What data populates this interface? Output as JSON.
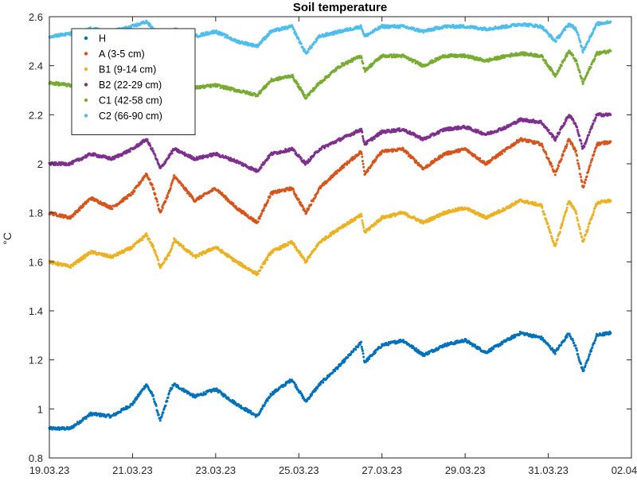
{
  "chart_data": {
    "type": "scatter",
    "title": "Soil temperature",
    "xlabel": "",
    "ylabel": "°C",
    "x_range": [
      "19.03.23",
      "02.04.23"
    ],
    "ylim": [
      0.8,
      2.6
    ],
    "x_ticks": [
      "19.03.23",
      "21.03.23",
      "23.03.23",
      "25.03.23",
      "27.03.23",
      "29.03.23",
      "31.03.23",
      "02.04.23"
    ],
    "y_ticks": [
      "0.8",
      "1",
      "1.2",
      "1.4",
      "1.6",
      "1.8",
      "2",
      "2.2",
      "2.4",
      "2.6"
    ],
    "grid": false,
    "legend_position": "top-left",
    "series": [
      {
        "name": "H",
        "color": "#0072BD",
        "x": [
          "19.03.23",
          "19.03.23 12:00",
          "20.03.23",
          "20.03.23 12:00",
          "21.03.23",
          "21.03.23 08:00",
          "21.03.23 12:00",
          "21.03.23 16:00",
          "21.03.23 22:00",
          "22.03.23",
          "22.03.23 12:00",
          "23.03.23",
          "23.03.23 12:00",
          "24.03.23",
          "24.03.23 08:00",
          "24.03.23 20:00",
          "25.03.23 04:00",
          "25.03.23 12:00",
          "26.03.23",
          "26.03.23 12:00",
          "26.03.23 14:00",
          "27.03.23",
          "27.03.23 12:00",
          "28.03.23",
          "28.03.23 12:00",
          "29.03.23",
          "29.03.23 12:00",
          "30.03.23",
          "30.03.23 08:00",
          "30.03.23 20:00",
          "31.03.23 04:00",
          "31.03.23 12:00",
          "31.03.23 16:00",
          "31.03.23 20:00",
          "01.04.23 04:00",
          "01.04.23 12:00"
        ],
        "y": [
          0.92,
          0.92,
          0.98,
          0.97,
          1.02,
          1.1,
          1.05,
          0.95,
          1.08,
          1.1,
          1.05,
          1.08,
          1.02,
          0.97,
          1.06,
          1.12,
          1.03,
          1.1,
          1.18,
          1.27,
          1.19,
          1.26,
          1.28,
          1.22,
          1.26,
          1.28,
          1.23,
          1.28,
          1.31,
          1.29,
          1.23,
          1.31,
          1.25,
          1.15,
          1.3,
          1.31
        ]
      },
      {
        "name": "A (3-5 cm)",
        "color": "#D95319",
        "x": [
          "19.03.23",
          "19.03.23 12:00",
          "20.03.23",
          "20.03.23 12:00",
          "21.03.23",
          "21.03.23 08:00",
          "21.03.23 12:00",
          "21.03.23 16:00",
          "21.03.23 22:00",
          "22.03.23",
          "22.03.23 12:00",
          "23.03.23",
          "23.03.23 12:00",
          "24.03.23",
          "24.03.23 08:00",
          "24.03.23 20:00",
          "25.03.23 04:00",
          "25.03.23 12:00",
          "26.03.23",
          "26.03.23 12:00",
          "26.03.23 14:00",
          "27.03.23",
          "27.03.23 12:00",
          "28.03.23",
          "28.03.23 12:00",
          "29.03.23",
          "29.03.23 12:00",
          "30.03.23",
          "30.03.23 08:00",
          "30.03.23 20:00",
          "31.03.23 04:00",
          "31.03.23 12:00",
          "31.03.23 16:00",
          "31.03.23 20:00",
          "01.04.23 04:00",
          "01.04.23 12:00"
        ],
        "y": [
          1.8,
          1.78,
          1.86,
          1.82,
          1.88,
          1.96,
          1.9,
          1.8,
          1.9,
          1.95,
          1.85,
          1.9,
          1.82,
          1.76,
          1.88,
          1.9,
          1.8,
          1.9,
          1.98,
          2.05,
          1.96,
          2.05,
          2.06,
          1.98,
          2.04,
          2.06,
          2.0,
          2.06,
          2.1,
          2.08,
          1.96,
          2.1,
          2.05,
          1.9,
          2.08,
          2.09
        ]
      },
      {
        "name": "B1 (9-14 cm)",
        "color": "#EDB120",
        "x": [
          "19.03.23",
          "19.03.23 12:00",
          "20.03.23",
          "20.03.23 12:00",
          "21.03.23",
          "21.03.23 08:00",
          "21.03.23 12:00",
          "21.03.23 16:00",
          "21.03.23 22:00",
          "22.03.23",
          "22.03.23 12:00",
          "23.03.23",
          "23.03.23 12:00",
          "24.03.23",
          "24.03.23 08:00",
          "24.03.23 20:00",
          "25.03.23 04:00",
          "25.03.23 12:00",
          "26.03.23",
          "26.03.23 12:00",
          "26.03.23 14:00",
          "27.03.23",
          "27.03.23 12:00",
          "28.03.23",
          "28.03.23 12:00",
          "29.03.23",
          "29.03.23 12:00",
          "30.03.23",
          "30.03.23 08:00",
          "30.03.23 20:00",
          "31.03.23 04:00",
          "31.03.23 12:00",
          "31.03.23 16:00",
          "31.03.23 20:00",
          "01.04.23 04:00",
          "01.04.23 12:00"
        ],
        "y": [
          1.6,
          1.58,
          1.64,
          1.62,
          1.66,
          1.71,
          1.66,
          1.58,
          1.64,
          1.69,
          1.62,
          1.66,
          1.6,
          1.55,
          1.64,
          1.68,
          1.6,
          1.68,
          1.74,
          1.79,
          1.72,
          1.78,
          1.8,
          1.76,
          1.8,
          1.82,
          1.78,
          1.82,
          1.85,
          1.83,
          1.66,
          1.85,
          1.8,
          1.68,
          1.84,
          1.85
        ]
      },
      {
        "name": "B2 (22-29 cm)",
        "color": "#7E2F8E",
        "x": [
          "19.03.23",
          "19.03.23 12:00",
          "20.03.23",
          "20.03.23 12:00",
          "21.03.23",
          "21.03.23 08:00",
          "21.03.23 12:00",
          "21.03.23 16:00",
          "21.03.23 22:00",
          "22.03.23",
          "22.03.23 12:00",
          "23.03.23",
          "23.03.23 12:00",
          "24.03.23",
          "24.03.23 08:00",
          "24.03.23 20:00",
          "25.03.23 04:00",
          "25.03.23 12:00",
          "26.03.23",
          "26.03.23 12:00",
          "26.03.23 14:00",
          "27.03.23",
          "27.03.23 12:00",
          "28.03.23",
          "28.03.23 12:00",
          "29.03.23",
          "29.03.23 12:00",
          "30.03.23",
          "30.03.23 08:00",
          "30.03.23 20:00",
          "31.03.23 04:00",
          "31.03.23 12:00",
          "31.03.23 16:00",
          "31.03.23 20:00",
          "01.04.23 04:00",
          "01.04.23 12:00"
        ],
        "y": [
          2.0,
          2.0,
          2.04,
          2.02,
          2.06,
          2.1,
          2.05,
          1.98,
          2.04,
          2.06,
          2.02,
          2.04,
          2.01,
          1.97,
          2.04,
          2.06,
          2.0,
          2.06,
          2.1,
          2.14,
          2.08,
          2.13,
          2.14,
          2.1,
          2.14,
          2.15,
          2.12,
          2.15,
          2.18,
          2.17,
          2.1,
          2.2,
          2.16,
          2.06,
          2.2,
          2.2
        ]
      },
      {
        "name": "C1 (42-58 cm)",
        "color": "#77AC30",
        "x": [
          "19.03.23",
          "19.03.23 12:00",
          "20.03.23",
          "20.03.23 12:00",
          "21.03.23",
          "21.03.23 08:00",
          "21.03.23 12:00",
          "21.03.23 16:00",
          "21.03.23 22:00",
          "22.03.23",
          "22.03.23 12:00",
          "23.03.23",
          "23.03.23 12:00",
          "24.03.23",
          "24.03.23 08:00",
          "24.03.23 20:00",
          "25.03.23 04:00",
          "25.03.23 12:00",
          "26.03.23",
          "26.03.23 12:00",
          "26.03.23 14:00",
          "27.03.23",
          "27.03.23 12:00",
          "28.03.23",
          "28.03.23 12:00",
          "29.03.23",
          "29.03.23 12:00",
          "30.03.23",
          "30.03.23 08:00",
          "30.03.23 20:00",
          "31.03.23 04:00",
          "31.03.23 12:00",
          "31.03.23 16:00",
          "31.03.23 20:00",
          "01.04.23 04:00",
          "01.04.23 12:00"
        ],
        "y": [
          2.33,
          2.32,
          2.33,
          2.32,
          2.33,
          2.34,
          2.32,
          2.3,
          2.32,
          2.33,
          2.31,
          2.32,
          2.3,
          2.28,
          2.34,
          2.36,
          2.27,
          2.33,
          2.4,
          2.44,
          2.38,
          2.44,
          2.44,
          2.4,
          2.44,
          2.44,
          2.42,
          2.44,
          2.45,
          2.44,
          2.36,
          2.46,
          2.42,
          2.33,
          2.45,
          2.46
        ]
      },
      {
        "name": "C2 (66-90 cm)",
        "color": "#4DBEEE",
        "x": [
          "19.03.23",
          "19.03.23 12:00",
          "20.03.23",
          "20.03.23 12:00",
          "21.03.23",
          "21.03.23 08:00",
          "21.03.23 12:00",
          "21.03.23 16:00",
          "21.03.23 22:00",
          "22.03.23",
          "22.03.23 12:00",
          "23.03.23",
          "23.03.23 12:00",
          "24.03.23",
          "24.03.23 08:00",
          "24.03.23 20:00",
          "25.03.23 04:00",
          "25.03.23 12:00",
          "26.03.23",
          "26.03.23 12:00",
          "26.03.23 14:00",
          "27.03.23",
          "27.03.23 12:00",
          "28.03.23",
          "28.03.23 12:00",
          "29.03.23",
          "29.03.23 12:00",
          "30.03.23",
          "30.03.23 08:00",
          "30.03.23 20:00",
          "31.03.23 04:00",
          "31.03.23 12:00",
          "31.03.23 16:00",
          "31.03.23 20:00",
          "01.04.23 04:00",
          "01.04.23 12:00"
        ],
        "y": [
          2.52,
          2.53,
          2.55,
          2.54,
          2.56,
          2.58,
          2.55,
          2.52,
          2.54,
          2.55,
          2.52,
          2.54,
          2.5,
          2.48,
          2.54,
          2.56,
          2.45,
          2.52,
          2.54,
          2.56,
          2.52,
          2.56,
          2.56,
          2.54,
          2.56,
          2.56,
          2.55,
          2.56,
          2.57,
          2.56,
          2.5,
          2.57,
          2.55,
          2.46,
          2.57,
          2.58
        ]
      }
    ]
  }
}
